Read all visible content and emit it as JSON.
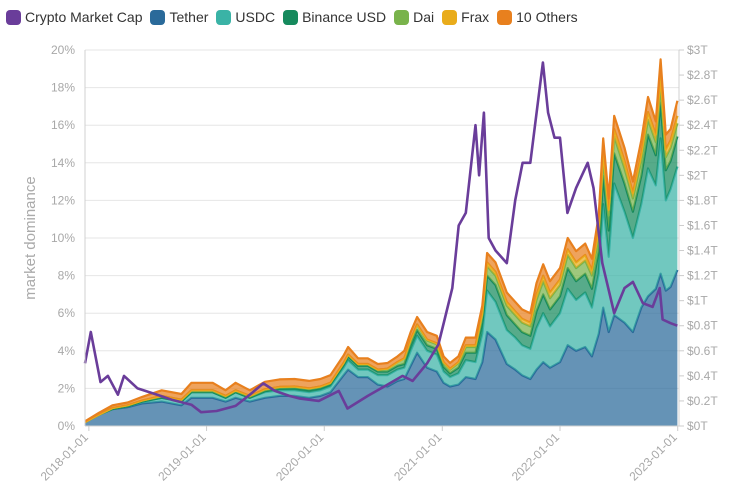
{
  "chart_data": {
    "type": "area",
    "stacked": true,
    "ylabel": "market dominance",
    "y_left": {
      "ticks": [
        "0%",
        "2%",
        "4%",
        "6%",
        "8%",
        "10%",
        "12%",
        "14%",
        "16%",
        "18%",
        "20%"
      ],
      "range": [
        0,
        20
      ]
    },
    "y_right": {
      "ticks": [
        "$0T",
        "$0.2T",
        "$0.4T",
        "$0.6T",
        "$0.8T",
        "$1T",
        "$1.2T",
        "$1.4T",
        "$1.6T",
        "$1.8T",
        "$2T",
        "$2.2T",
        "$2.4T",
        "$2.6T",
        "$2.8T",
        "$3T"
      ],
      "range": [
        0,
        3
      ]
    },
    "x_ticks": [
      "2018-01-01",
      "2019-01-01",
      "2020-01-01",
      "2021-01-01",
      "2022-01-01",
      "2023-01-01"
    ],
    "x_range": [
      "2017-12-20",
      "2023-01-05"
    ],
    "grid": true,
    "legend_position": "top-left",
    "x": [
      "2017-12-20",
      "2018-02-01",
      "2018-03-15",
      "2018-05-01",
      "2018-06-15",
      "2018-08-15",
      "2018-10-15",
      "2018-11-15",
      "2018-12-20",
      "2019-01-20",
      "2019-03-01",
      "2019-04-01",
      "2019-05-15",
      "2019-07-01",
      "2019-08-15",
      "2019-10-01",
      "2019-11-15",
      "2019-12-20",
      "2020-01-20",
      "2020-03-01",
      "2020-03-15",
      "2020-04-15",
      "2020-05-15",
      "2020-06-15",
      "2020-07-15",
      "2020-08-15",
      "2020-09-05",
      "2020-09-25",
      "2020-10-15",
      "2020-11-15",
      "2020-12-15",
      "2021-01-05",
      "2021-01-25",
      "2021-02-20",
      "2021-03-15",
      "2021-04-14",
      "2021-05-05",
      "2021-05-20",
      "2021-06-15",
      "2021-07-20",
      "2021-08-15",
      "2021-09-05",
      "2021-10-01",
      "2021-10-20",
      "2021-11-10",
      "2021-12-01",
      "2022-01-01",
      "2022-01-25",
      "2022-02-20",
      "2022-03-20",
      "2022-04-10",
      "2022-05-01",
      "2022-05-15",
      "2022-06-01",
      "2022-06-18",
      "2022-07-20",
      "2022-08-15",
      "2022-09-10",
      "2022-10-01",
      "2022-10-25",
      "2022-11-09",
      "2022-11-25",
      "2022-12-10",
      "2022-12-31"
    ],
    "series": [
      {
        "name": "Tether",
        "color": "#2a6a9a",
        "values": [
          0.2,
          0.6,
          0.9,
          1.0,
          1.2,
          1.3,
          1.1,
          1.5,
          1.5,
          1.5,
          1.3,
          1.5,
          1.3,
          1.5,
          1.6,
          1.6,
          1.5,
          1.6,
          1.8,
          2.7,
          3.0,
          2.6,
          2.6,
          2.2,
          2.1,
          2.4,
          2.5,
          3.2,
          3.9,
          3.1,
          2.9,
          2.3,
          2.1,
          2.2,
          2.6,
          2.5,
          3.4,
          5.0,
          4.6,
          3.3,
          3.0,
          2.7,
          2.5,
          3.0,
          3.4,
          3.1,
          3.4,
          4.3,
          4.0,
          4.2,
          3.7,
          4.9,
          6.3,
          5.0,
          5.9,
          5.5,
          5.0,
          6.3,
          6.9,
          7.3,
          8.1,
          7.2,
          7.4,
          8.3
        ]
      },
      {
        "name": "USDC",
        "color": "#3ab3a6",
        "values": [
          0.0,
          0.0,
          0.0,
          0.05,
          0.1,
          0.2,
          0.2,
          0.3,
          0.3,
          0.3,
          0.2,
          0.3,
          0.2,
          0.3,
          0.3,
          0.3,
          0.3,
          0.3,
          0.3,
          0.4,
          0.5,
          0.4,
          0.4,
          0.5,
          0.6,
          0.6,
          0.6,
          0.8,
          0.9,
          0.9,
          0.9,
          0.6,
          0.5,
          0.6,
          0.9,
          0.9,
          1.5,
          2.2,
          2.0,
          1.8,
          1.7,
          1.6,
          1.6,
          2.2,
          2.6,
          2.2,
          2.6,
          3.0,
          2.7,
          2.9,
          2.6,
          3.2,
          5.5,
          4.0,
          7.0,
          5.9,
          5.0,
          5.5,
          6.8,
          5.5,
          7.2,
          4.8,
          5.2,
          5.5
        ]
      },
      {
        "name": "Binance USD",
        "color": "#168a5d",
        "values": [
          0.0,
          0.0,
          0.0,
          0.0,
          0.0,
          0.0,
          0.0,
          0.0,
          0.0,
          0.0,
          0.0,
          0.0,
          0.0,
          0.05,
          0.08,
          0.1,
          0.1,
          0.1,
          0.1,
          0.15,
          0.2,
          0.2,
          0.2,
          0.2,
          0.2,
          0.2,
          0.2,
          0.3,
          0.3,
          0.3,
          0.3,
          0.25,
          0.2,
          0.3,
          0.4,
          0.5,
          0.6,
          0.8,
          0.9,
          0.8,
          0.7,
          0.7,
          0.7,
          0.9,
          1.0,
          0.9,
          0.9,
          1.1,
          1.0,
          1.0,
          1.0,
          1.2,
          1.5,
          1.4,
          1.6,
          1.5,
          1.4,
          1.5,
          1.8,
          1.6,
          1.9,
          1.6,
          1.5,
          1.6
        ]
      },
      {
        "name": "Dai",
        "color": "#79b34b",
        "values": [
          0.0,
          0.0,
          0.05,
          0.05,
          0.05,
          0.1,
          0.1,
          0.1,
          0.1,
          0.1,
          0.1,
          0.1,
          0.1,
          0.1,
          0.1,
          0.1,
          0.1,
          0.1,
          0.1,
          0.1,
          0.1,
          0.1,
          0.1,
          0.1,
          0.15,
          0.2,
          0.3,
          0.3,
          0.3,
          0.25,
          0.25,
          0.2,
          0.2,
          0.25,
          0.3,
          0.3,
          0.4,
          0.5,
          0.5,
          0.5,
          0.5,
          0.5,
          0.5,
          0.6,
          0.7,
          0.6,
          0.6,
          0.7,
          0.7,
          0.7,
          0.7,
          0.8,
          0.9,
          0.8,
          0.9,
          0.8,
          0.7,
          0.8,
          0.8,
          0.7,
          0.9,
          0.7,
          0.7,
          0.7
        ]
      },
      {
        "name": "Frax",
        "color": "#e9ac1b",
        "values": [
          0.0,
          0.0,
          0.0,
          0.0,
          0.0,
          0.0,
          0.0,
          0.0,
          0.0,
          0.0,
          0.0,
          0.0,
          0.0,
          0.0,
          0.0,
          0.0,
          0.0,
          0.0,
          0.0,
          0.0,
          0.0,
          0.0,
          0.0,
          0.0,
          0.0,
          0.0,
          0.0,
          0.0,
          0.0,
          0.05,
          0.05,
          0.05,
          0.05,
          0.05,
          0.1,
          0.1,
          0.1,
          0.2,
          0.2,
          0.2,
          0.2,
          0.2,
          0.2,
          0.3,
          0.3,
          0.3,
          0.3,
          0.3,
          0.3,
          0.3,
          0.3,
          0.4,
          0.4,
          0.3,
          0.4,
          0.4,
          0.3,
          0.4,
          0.4,
          0.4,
          0.5,
          0.4,
          0.4,
          0.4
        ]
      },
      {
        "name": "10 Others",
        "color": "#e8801e",
        "values": [
          0.05,
          0.1,
          0.15,
          0.15,
          0.2,
          0.3,
          0.3,
          0.4,
          0.4,
          0.4,
          0.3,
          0.4,
          0.3,
          0.4,
          0.4,
          0.4,
          0.4,
          0.4,
          0.4,
          0.4,
          0.4,
          0.3,
          0.3,
          0.3,
          0.3,
          0.3,
          0.4,
          0.4,
          0.4,
          0.4,
          0.4,
          0.3,
          0.3,
          0.3,
          0.4,
          0.4,
          0.4,
          0.5,
          0.5,
          0.5,
          0.5,
          0.5,
          0.5,
          0.6,
          0.6,
          0.6,
          0.6,
          0.6,
          0.6,
          0.6,
          0.6,
          0.7,
          0.7,
          0.6,
          0.7,
          0.7,
          0.6,
          0.7,
          0.8,
          0.7,
          0.9,
          0.8,
          0.6,
          0.8
        ]
      }
    ],
    "market_cap": {
      "name": "Crypto Market Cap",
      "color": "#6a3d9a",
      "axis": "right",
      "x": [
        "2017-12-20",
        "2018-01-07",
        "2018-02-06",
        "2018-03-01",
        "2018-04-01",
        "2018-04-20",
        "2018-06-01",
        "2018-08-01",
        "2018-09-15",
        "2018-11-15",
        "2018-12-15",
        "2019-02-01",
        "2019-04-01",
        "2019-05-15",
        "2019-06-26",
        "2019-08-01",
        "2019-09-15",
        "2019-10-15",
        "2019-12-15",
        "2020-02-15",
        "2020-03-13",
        "2020-05-15",
        "2020-07-15",
        "2020-08-31",
        "2020-10-01",
        "2020-11-15",
        "2020-12-20",
        "2021-01-08",
        "2021-02-01",
        "2021-02-21",
        "2021-03-15",
        "2021-04-14",
        "2021-04-25",
        "2021-05-10",
        "2021-05-25",
        "2021-06-15",
        "2021-07-20",
        "2021-08-15",
        "2021-09-07",
        "2021-10-01",
        "2021-11-09",
        "2021-11-25",
        "2021-12-15",
        "2022-01-01",
        "2022-01-24",
        "2022-02-20",
        "2022-03-28",
        "2022-04-15",
        "2022-05-12",
        "2022-06-18",
        "2022-07-20",
        "2022-08-15",
        "2022-09-15",
        "2022-10-15",
        "2022-11-06",
        "2022-11-15",
        "2022-12-10",
        "2022-12-31"
      ],
      "values": [
        0.5,
        0.75,
        0.35,
        0.4,
        0.25,
        0.4,
        0.3,
        0.25,
        0.21,
        0.17,
        0.11,
        0.12,
        0.16,
        0.25,
        0.34,
        0.28,
        0.24,
        0.22,
        0.2,
        0.28,
        0.14,
        0.24,
        0.33,
        0.4,
        0.36,
        0.5,
        0.65,
        0.85,
        1.1,
        1.6,
        1.7,
        2.4,
        2.0,
        2.5,
        1.5,
        1.4,
        1.3,
        1.8,
        2.1,
        2.1,
        2.9,
        2.5,
        2.3,
        2.3,
        1.7,
        1.9,
        2.1,
        1.9,
        1.3,
        0.9,
        1.1,
        1.15,
        0.98,
        0.95,
        1.1,
        0.85,
        0.82,
        0.8
      ]
    }
  }
}
